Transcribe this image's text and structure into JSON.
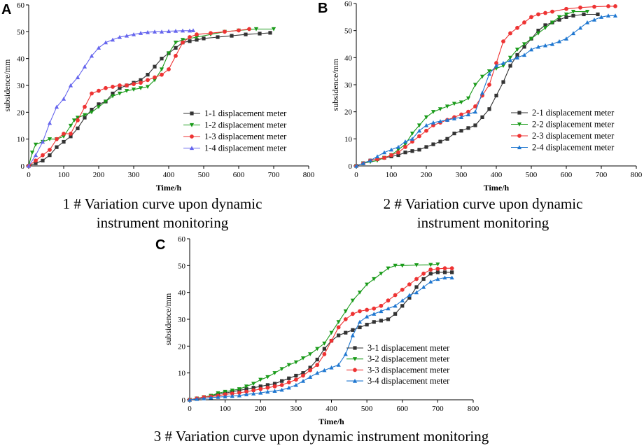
{
  "chart_data": [
    {
      "type": "line",
      "panel": "A",
      "caption_lines": [
        "1 # Variation curve upon dynamic",
        "instrument monitoring"
      ],
      "xlabel": "Time/h",
      "ylabel": "subsidence/mm",
      "xlim": [
        0,
        800
      ],
      "ylim": [
        0,
        60
      ],
      "xticks": [
        0,
        100,
        200,
        300,
        400,
        500,
        600,
        700,
        800
      ],
      "yticks": [
        0,
        10,
        20,
        30,
        40,
        50,
        60
      ],
      "legend_position": "right-center",
      "series": [
        {
          "name": "1-1 displacement meter",
          "color": "#333333",
          "marker": "square",
          "x": [
            0,
            20,
            40,
            60,
            80,
            100,
            120,
            140,
            160,
            180,
            200,
            220,
            240,
            260,
            280,
            300,
            320,
            340,
            360,
            380,
            400,
            420,
            440,
            460,
            480,
            500,
            540,
            580,
            620,
            660,
            690
          ],
          "y": [
            0,
            1,
            2,
            4,
            7,
            9,
            11,
            14,
            18,
            21,
            23,
            24,
            27,
            29,
            30,
            31,
            32,
            34,
            37,
            40,
            42,
            44,
            46,
            46.5,
            47,
            47.5,
            48,
            48.5,
            49,
            49.3,
            49.6
          ]
        },
        {
          "name": "1-2 displacement meter",
          "color": "#1a9b1a",
          "marker": "triangle-down",
          "x": [
            0,
            10,
            20,
            40,
            60,
            80,
            100,
            120,
            130,
            140,
            160,
            180,
            200,
            220,
            240,
            260,
            280,
            300,
            320,
            340,
            360,
            380,
            400,
            420,
            440,
            480,
            520,
            560,
            600,
            650,
            700
          ],
          "y": [
            0,
            5,
            8,
            9,
            10,
            10,
            11,
            15,
            17,
            18,
            19,
            20,
            22,
            24,
            26,
            27,
            28,
            28.5,
            29,
            29.5,
            32,
            36,
            42,
            46,
            47,
            48,
            49,
            50,
            50.5,
            51,
            51
          ]
        },
        {
          "name": "1-3 displacement meter",
          "color": "#ee3333",
          "marker": "circle",
          "x": [
            0,
            20,
            40,
            60,
            80,
            100,
            120,
            140,
            160,
            180,
            200,
            220,
            240,
            260,
            280,
            300,
            320,
            340,
            360,
            380,
            400,
            420,
            440,
            460,
            480,
            520,
            560,
            600,
            630
          ],
          "y": [
            0,
            2,
            4,
            6,
            10,
            12,
            12,
            17,
            22,
            27,
            28,
            29,
            29.5,
            30,
            30,
            30.5,
            31,
            32,
            33,
            34,
            36,
            41,
            46,
            48,
            49,
            49.5,
            50,
            50.5,
            51
          ]
        },
        {
          "name": "1-4 displacement meter",
          "color": "#6666ee",
          "marker": "triangle-up",
          "x": [
            0,
            20,
            40,
            60,
            80,
            100,
            120,
            140,
            160,
            180,
            200,
            220,
            240,
            260,
            280,
            300,
            320,
            340,
            360,
            380,
            400,
            420,
            440,
            460,
            470
          ],
          "y": [
            0,
            4,
            9,
            16,
            22,
            25,
            30,
            33,
            37,
            41,
            44,
            46,
            47,
            48,
            48.5,
            49,
            49.5,
            49.8,
            50,
            50,
            50.2,
            50.3,
            50.4,
            50.4,
            50.5
          ]
        }
      ]
    },
    {
      "type": "line",
      "panel": "B",
      "caption_lines": [
        "2 # Variation curve upon dynamic",
        "instrument monitoring"
      ],
      "xlabel": "Time/h",
      "ylabel": "subsidence/mm",
      "xlim": [
        0,
        800
      ],
      "ylim": [
        0,
        60
      ],
      "xticks": [
        0,
        100,
        200,
        300,
        400,
        500,
        600,
        700,
        800
      ],
      "yticks": [
        0,
        10,
        20,
        30,
        40,
        50,
        60
      ],
      "legend_position": "right-center",
      "series": [
        {
          "name": "2-1 displacement meter",
          "color": "#333333",
          "marker": "square",
          "x": [
            0,
            20,
            40,
            60,
            80,
            100,
            120,
            140,
            160,
            180,
            200,
            220,
            240,
            260,
            280,
            300,
            320,
            340,
            360,
            380,
            400,
            420,
            440,
            460,
            480,
            500,
            520,
            540,
            560,
            580,
            600,
            620,
            650,
            690
          ],
          "y": [
            0,
            1,
            2,
            2.5,
            3,
            3.5,
            4,
            5,
            5.5,
            6,
            7,
            8,
            9,
            10,
            12,
            13,
            14,
            15,
            18,
            21,
            26,
            31,
            37,
            41,
            44,
            47,
            50,
            52,
            53,
            54,
            55,
            55.5,
            56,
            56
          ]
        },
        {
          "name": "2-2 displacement meter",
          "color": "#1a9b1a",
          "marker": "triangle-down",
          "x": [
            0,
            20,
            40,
            60,
            80,
            100,
            120,
            140,
            160,
            180,
            200,
            220,
            240,
            260,
            280,
            300,
            320,
            340,
            360,
            380,
            400,
            420,
            440,
            460,
            480,
            500,
            520,
            540,
            560,
            580,
            600,
            620,
            660
          ],
          "y": [
            0,
            1,
            1.5,
            2,
            3,
            4,
            6,
            8,
            12,
            15,
            18,
            20,
            21,
            22,
            23,
            23.5,
            25,
            30,
            33,
            35,
            36,
            37,
            40,
            43,
            45,
            47,
            49,
            51,
            53,
            55,
            56,
            57,
            57
          ]
        },
        {
          "name": "2-3 displacement meter",
          "color": "#ee3333",
          "marker": "circle",
          "x": [
            0,
            20,
            40,
            60,
            80,
            100,
            120,
            140,
            160,
            180,
            200,
            220,
            240,
            260,
            280,
            300,
            320,
            340,
            360,
            380,
            400,
            420,
            440,
            460,
            480,
            500,
            520,
            540,
            560,
            600,
            640,
            680,
            720,
            740
          ],
          "y": [
            0,
            1,
            2,
            2.5,
            3,
            4,
            5,
            7,
            9,
            11,
            13,
            15,
            16,
            17,
            18,
            19,
            20,
            22,
            26,
            30,
            38,
            46,
            49,
            51,
            53,
            55,
            56,
            56.5,
            57,
            58,
            58.5,
            58.8,
            59,
            59
          ]
        },
        {
          "name": "2-4 displacement meter",
          "color": "#1f77d0",
          "marker": "triangle-up",
          "x": [
            0,
            20,
            40,
            60,
            80,
            100,
            120,
            140,
            160,
            180,
            200,
            220,
            240,
            260,
            280,
            300,
            320,
            340,
            360,
            380,
            400,
            420,
            440,
            460,
            480,
            500,
            520,
            540,
            560,
            580,
            600,
            620,
            640,
            660,
            680,
            700,
            720,
            740
          ],
          "y": [
            0,
            1,
            2,
            3.5,
            5,
            6,
            7,
            9,
            10,
            13,
            15,
            16,
            16.5,
            17,
            17.5,
            18,
            19,
            20,
            27,
            34,
            37,
            38,
            39,
            40,
            41,
            43,
            44,
            44.5,
            45,
            46,
            47,
            49,
            51,
            53,
            54,
            55,
            55.5,
            55.5
          ]
        }
      ]
    },
    {
      "type": "line",
      "panel": "C",
      "caption_lines": [
        "3 # Variation curve upon dynamic instrument monitoring"
      ],
      "xlabel": "Time/h",
      "ylabel": "subsidence/mm",
      "xlim": [
        0,
        800
      ],
      "ylim": [
        0,
        60
      ],
      "xticks": [
        0,
        100,
        200,
        300,
        400,
        500,
        600,
        700,
        800
      ],
      "yticks": [
        0,
        10,
        20,
        30,
        40,
        50,
        60
      ],
      "legend_position": "right-center",
      "series": [
        {
          "name": "3-1 displacement meter",
          "color": "#333333",
          "marker": "square",
          "x": [
            0,
            20,
            40,
            60,
            80,
            100,
            120,
            140,
            160,
            180,
            200,
            220,
            240,
            260,
            280,
            300,
            320,
            340,
            360,
            380,
            400,
            420,
            440,
            460,
            480,
            500,
            520,
            540,
            560,
            580,
            600,
            620,
            640,
            660,
            680,
            700,
            720,
            740
          ],
          "y": [
            0,
            0.5,
            1,
            1.5,
            2,
            2.5,
            3,
            3.5,
            4,
            4.5,
            5,
            5.5,
            6,
            7,
            8,
            9,
            10,
            12,
            15,
            19,
            22,
            24,
            25,
            26,
            27,
            28,
            29,
            29.5,
            30,
            32,
            35,
            38,
            42,
            45,
            47,
            47.5,
            47.5,
            47.5
          ]
        },
        {
          "name": "3-2 displacement meter",
          "color": "#1a9b1a",
          "marker": "triangle-down",
          "x": [
            0,
            20,
            40,
            60,
            80,
            100,
            120,
            140,
            160,
            180,
            200,
            220,
            240,
            260,
            280,
            300,
            320,
            340,
            360,
            380,
            400,
            420,
            440,
            460,
            480,
            500,
            520,
            540,
            560,
            580,
            600,
            640,
            680,
            700
          ],
          "y": [
            0,
            0.5,
            1,
            1.5,
            2.5,
            3,
            3.5,
            4,
            5,
            6,
            7.5,
            8.5,
            10,
            11.5,
            13,
            14,
            15.5,
            17,
            19,
            21,
            25,
            29,
            33,
            37,
            40,
            43,
            45,
            47,
            49,
            50,
            50,
            50.2,
            50.3,
            50.5
          ]
        },
        {
          "name": "3-3 displacement meter",
          "color": "#ee3333",
          "marker": "circle",
          "x": [
            0,
            20,
            40,
            60,
            80,
            100,
            120,
            140,
            160,
            180,
            200,
            220,
            240,
            260,
            280,
            300,
            320,
            340,
            360,
            380,
            400,
            420,
            440,
            460,
            480,
            500,
            520,
            540,
            560,
            580,
            600,
            620,
            640,
            660,
            680,
            700,
            720,
            740
          ],
          "y": [
            0,
            0.5,
            1,
            1.2,
            1.5,
            2,
            2.3,
            2.6,
            3,
            3.5,
            4,
            4.5,
            5,
            5.5,
            6.5,
            7.5,
            9,
            11,
            13,
            17,
            22,
            27,
            30,
            32,
            33,
            33.5,
            34,
            35,
            37,
            39,
            41,
            43,
            45,
            47,
            48.5,
            48.8,
            49,
            49
          ]
        },
        {
          "name": "3-4 displacement meter",
          "color": "#1f77d0",
          "marker": "triangle-up",
          "x": [
            0,
            20,
            40,
            60,
            80,
            100,
            120,
            140,
            160,
            180,
            200,
            220,
            240,
            260,
            280,
            300,
            320,
            340,
            360,
            380,
            400,
            420,
            440,
            460,
            480,
            500,
            520,
            540,
            560,
            580,
            600,
            620,
            640,
            660,
            680,
            700,
            720,
            740
          ],
          "y": [
            0,
            0.3,
            0.5,
            0.8,
            1,
            1.2,
            1.4,
            1.6,
            2,
            2.3,
            2.6,
            3,
            3.3,
            3.7,
            4.5,
            5.5,
            7,
            8.5,
            10,
            11,
            12,
            13,
            17,
            24,
            29,
            31,
            32,
            33,
            34,
            35,
            37,
            39,
            40,
            42,
            44,
            45,
            45.5,
            45.5
          ]
        }
      ]
    }
  ]
}
